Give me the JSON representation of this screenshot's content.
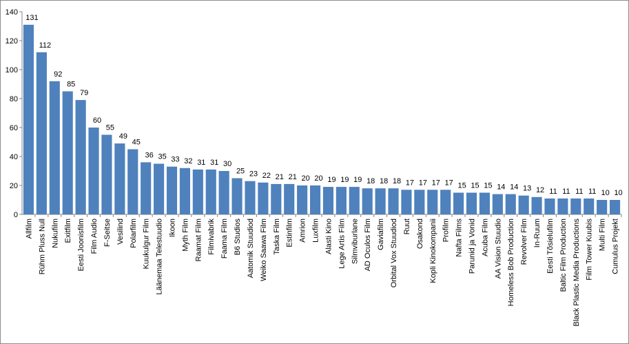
{
  "chart_data": {
    "type": "bar",
    "title": "",
    "xlabel": "",
    "ylabel": "",
    "ylim": [
      0,
      140
    ],
    "yticks": [
      0,
      20,
      40,
      60,
      80,
      100,
      120,
      140
    ],
    "grid": false,
    "legend": "none",
    "bar_color": "#4f81bd",
    "categories": [
      "Allfilm",
      "Rühm Pluss Null",
      "Nukufilm",
      "Exitfilm",
      "Eesti Joonisfilm",
      "Film Audio",
      "F-Seitse",
      "Vesilind",
      "Polarfilm",
      "Kuukulgur Film",
      "Läänemaa Telestuudio",
      "Ikoon",
      "Myth Film",
      "Raamat Film",
      "Filmivabrik",
      "Faama Film",
      "B6 Studios",
      "Aatomik Stuudiod",
      "Weiko Saawa Film",
      "Taska Film",
      "Estinfilm",
      "Amrion",
      "Luxfilm",
      "Alasti Kino",
      "Lege Artis Film",
      "Silmviburlane",
      "AD Oculos Film",
      "Gaviafilm",
      "Orbital Vox Stuudiod",
      "Ruut",
      "Osakond",
      "Kopli Kinokompanii",
      "Profilm",
      "Nafta Films",
      "Parunid ja Vonid",
      "Acuba Film",
      "AA Vision Stuudio",
      "Homeless Bob Production",
      "Revolver Film",
      "In-Ruum",
      "Eesti Tõsielufilm",
      "Baltic Film Production",
      "Black Plastic Media Productions",
      "Film Tower Kuubis",
      "Multi Film",
      "Cumulus Projekt"
    ],
    "values": [
      131,
      112,
      92,
      85,
      79,
      60,
      55,
      49,
      45,
      36,
      35,
      33,
      32,
      31,
      31,
      30,
      25,
      23,
      22,
      21,
      21,
      20,
      20,
      19,
      19,
      19,
      18,
      18,
      18,
      17,
      17,
      17,
      17,
      15,
      15,
      15,
      14,
      14,
      13,
      12,
      11,
      11,
      11,
      11,
      10,
      10
    ]
  }
}
